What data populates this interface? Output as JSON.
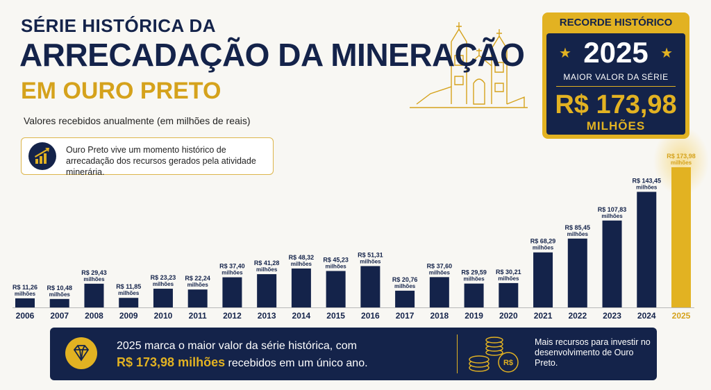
{
  "header": {
    "title_line1": "SÉRIE HISTÓRICA DA",
    "title_line2": "ARRECADAÇÃO DA MINERAÇÃO",
    "title_line3": "EM OURO PRETO"
  },
  "note": "Ouro Preto vive um momento histórico de arrecadação dos recursos gerados pela atividade minerária.",
  "record": {
    "heading": "RECORDE HISTÓRICO",
    "year": "2025",
    "caption": "MAIOR VALOR DA SÉRIE",
    "value": "R$ 173,98",
    "unit": "MILHÕES"
  },
  "footer": {
    "line1": "2025 marca o maior valor da série histórica, com",
    "highlight": "R$ 173,98 milhões",
    "line2": "recebidos em um único ano.",
    "coin_symbol": "R$",
    "side_text": "Mais recursos para investir no desenvolvimento de Ouro Preto."
  },
  "chart_data": {
    "type": "bar",
    "subtitle": "Valores recebidos anualmente (em milhões de reais)",
    "categories": [
      "2006",
      "2007",
      "2008",
      "2009",
      "2010",
      "2011",
      "2012",
      "2013",
      "2014",
      "2015",
      "2016",
      "2017",
      "2018",
      "2019",
      "2020",
      "2021",
      "2022",
      "2023",
      "2024",
      "2025"
    ],
    "values": [
      11.26,
      10.48,
      29.43,
      11.85,
      23.23,
      22.24,
      37.4,
      41.28,
      48.32,
      45.23,
      51.31,
      20.76,
      37.6,
      29.59,
      30.21,
      68.29,
      85.45,
      107.83,
      143.45,
      173.98
    ],
    "value_labels": [
      "R$ 11,26",
      "R$ 10,48",
      "R$ 29,43",
      "R$ 11,85",
      "R$ 23,23",
      "R$ 22,24",
      "R$ 37,40",
      "R$ 41,28",
      "R$ 48,32",
      "R$ 45,23",
      "R$ 51,31",
      "R$ 20,76",
      "R$ 37,60",
      "R$ 29,59",
      "R$ 30,21",
      "R$ 68,29",
      "R$ 85,45",
      "R$ 107,83",
      "R$ 143,45",
      "R$ 173,98"
    ],
    "value_label_unit": "milhões",
    "color": "#14234a",
    "highlight_color": "#e2b222",
    "highlight_index": 19
  }
}
